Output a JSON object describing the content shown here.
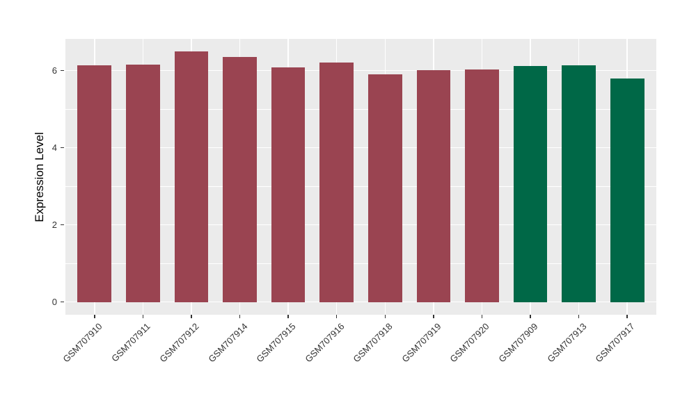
{
  "chart_data": {
    "type": "bar",
    "title": "",
    "xlabel": "",
    "ylabel": "Expression Level",
    "categories": [
      "GSM707910",
      "GSM707911",
      "GSM707912",
      "GSM707914",
      "GSM707915",
      "GSM707916",
      "GSM707918",
      "GSM707919",
      "GSM707920",
      "GSM707909",
      "GSM707913",
      "GSM707917"
    ],
    "bars": [
      {
        "label": "GSM707910",
        "value": 6.13,
        "group": "group1"
      },
      {
        "label": "GSM707911",
        "value": 6.16,
        "group": "group1"
      },
      {
        "label": "GSM707912",
        "value": 6.49,
        "group": "group1"
      },
      {
        "label": "GSM707914",
        "value": 6.35,
        "group": "group1"
      },
      {
        "label": "GSM707915",
        "value": 6.09,
        "group": "group1"
      },
      {
        "label": "GSM707916",
        "value": 6.21,
        "group": "group1"
      },
      {
        "label": "GSM707918",
        "value": 5.9,
        "group": "group1"
      },
      {
        "label": "GSM707919",
        "value": 6.01,
        "group": "group1"
      },
      {
        "label": "GSM707920",
        "value": 6.03,
        "group": "group1"
      },
      {
        "label": "GSM707909",
        "value": 6.11,
        "group": "group2"
      },
      {
        "label": "GSM707913",
        "value": 6.14,
        "group": "group2"
      },
      {
        "label": "GSM707917",
        "value": 5.8,
        "group": "group2"
      }
    ],
    "group_colors": {
      "group1": "#9A4451",
      "group2": "#006847"
    },
    "yticks": [
      0,
      2,
      4,
      6
    ],
    "yticks_minor": [
      1,
      3,
      5
    ],
    "ylim": [
      -0.33,
      6.82
    ],
    "bar_width_ratio": 0.7,
    "grid": true,
    "legend_position": "none",
    "panel_bg": "#EBEBEB",
    "grid_color": "#FFFFFF",
    "tick_color": "#333333",
    "axis_text_color": "#333333",
    "axis_title_color": "#000000"
  }
}
